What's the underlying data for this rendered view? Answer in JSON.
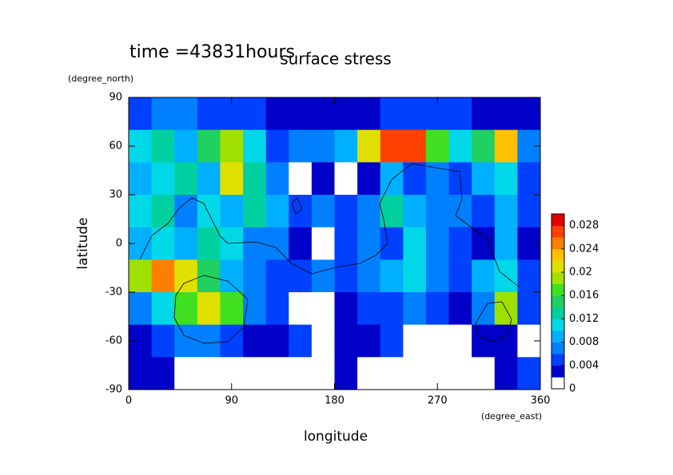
{
  "chart_data": {
    "type": "heatmap",
    "title": "surface stress",
    "subtitle": "time =43831hours",
    "x_label": "longitude",
    "y_label": "latitude",
    "x_unit": "(degree_east)",
    "y_unit": "(degree_north)",
    "x": [
      10,
      30,
      50,
      70,
      90,
      110,
      130,
      150,
      170,
      190,
      210,
      230,
      250,
      270,
      290,
      310,
      330,
      350
    ],
    "y": [
      80,
      60,
      40,
      20,
      0,
      -20,
      -40,
      -60,
      -80
    ],
    "values": [
      [
        0.005,
        0.006,
        0.006,
        0.005,
        0.005,
        0.004,
        0.003,
        0.002,
        0.002,
        0.003,
        0.003,
        0.004,
        0.005,
        0.005,
        0.004,
        0.003,
        0.003,
        0.003
      ],
      [
        0.01,
        0.012,
        0.008,
        0.014,
        0.018,
        0.01,
        0.005,
        0.006,
        0.006,
        0.008,
        0.02,
        0.026,
        0.026,
        0.016,
        0.01,
        0.014,
        0.022,
        0.006
      ],
      [
        0.008,
        0.01,
        0.012,
        0.008,
        0.02,
        0.012,
        0.006,
        0.001,
        0.003,
        0.001,
        0.002,
        0.008,
        0.004,
        0.006,
        0.004,
        0.008,
        0.01,
        0.004
      ],
      [
        0.01,
        0.012,
        0.006,
        0.01,
        0.008,
        0.012,
        0.008,
        0.004,
        0.006,
        0.004,
        0.006,
        0.012,
        0.008,
        0.006,
        0.006,
        0.004,
        0.008,
        0.005
      ],
      [
        0.008,
        0.01,
        0.008,
        0.012,
        0.01,
        0.006,
        0.006,
        0.003,
        0.001,
        0.004,
        0.006,
        0.004,
        0.01,
        0.006,
        0.004,
        0.002,
        0.008,
        0.003
      ],
      [
        0.018,
        0.024,
        0.02,
        0.014,
        0.008,
        0.006,
        0.005,
        0.004,
        0.006,
        0.004,
        0.006,
        0.008,
        0.01,
        0.006,
        0.005,
        0.008,
        0.01,
        0.004
      ],
      [
        0.006,
        0.01,
        0.016,
        0.02,
        0.016,
        0.006,
        0.004,
        0.001,
        0.001,
        0.003,
        0.005,
        0.004,
        0.006,
        0.004,
        0.003,
        0.006,
        0.018,
        0.004
      ],
      [
        0.003,
        0.005,
        0.006,
        0.006,
        0.004,
        0.003,
        0.002,
        0.004,
        0.001,
        0.002,
        0.003,
        0.004,
        0.001,
        0.001,
        0.001,
        0.002,
        0.003,
        0.001
      ],
      [
        0.003,
        0.003,
        0.001,
        0.001,
        0.001,
        0.001,
        0.001,
        0.001,
        0.001,
        0.002,
        0.001,
        0.001,
        0.001,
        0.001,
        0.001,
        0.001,
        0.002,
        0.004
      ]
    ],
    "xlim": [
      0,
      360
    ],
    "xticks": [
      0,
      90,
      180,
      270,
      360
    ],
    "ylim": [
      -90,
      90
    ],
    "yticks": [
      90,
      60,
      30,
      0,
      -30,
      -60,
      -90
    ],
    "levels": [
      0,
      0.002,
      0.004,
      0.006,
      0.008,
      0.01,
      0.012,
      0.014,
      0.016,
      0.018,
      0.02,
      0.022,
      0.024,
      0.026,
      0.028,
      0.03
    ],
    "colors": [
      "#ffffff",
      "#0000c8",
      "#0040ff",
      "#0080ff",
      "#00b0ff",
      "#00d8e8",
      "#00d0a0",
      "#20d060",
      "#40e020",
      "#a0e000",
      "#e0e000",
      "#ffc000",
      "#ff8000",
      "#ff4000",
      "#e00000"
    ],
    "clim": [
      0,
      0.03
    ],
    "cticks": [
      0,
      0.004,
      0.008,
      0.012,
      0.016,
      0.02,
      0.024,
      0.028
    ]
  }
}
